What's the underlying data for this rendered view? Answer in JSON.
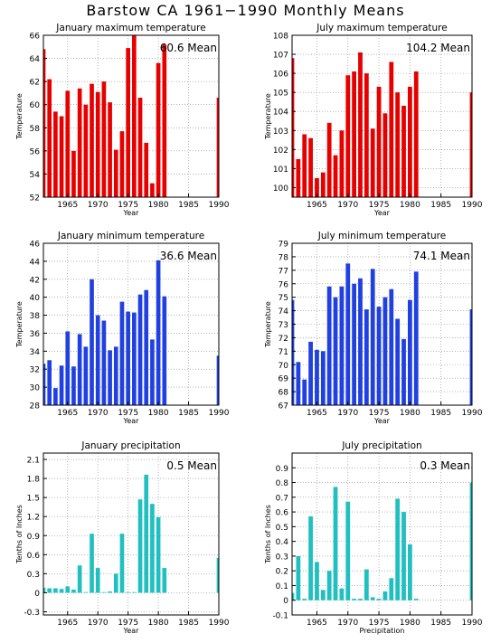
{
  "page": {
    "title": "Barstow CA  1961−1990 Monthly Means"
  },
  "chart_data": [
    {
      "type": "bar",
      "title": "January maximum temperature",
      "ylabel": "Temperature",
      "xlabel": "Year",
      "mean_label": "60.6 Mean",
      "color": "#e60000",
      "ylim": [
        52,
        66
      ],
      "yticks": [
        52,
        54,
        56,
        58,
        60,
        62,
        64,
        66
      ],
      "ytick_labels": [
        "52",
        "54",
        "56",
        "58",
        "60",
        "62",
        "64",
        "66"
      ],
      "xlim": [
        1961,
        1990
      ],
      "xticks": [
        1965,
        1970,
        1975,
        1980,
        1985,
        1990
      ],
      "xtick_labels": [
        "1965",
        "1970",
        "1975",
        "1980",
        "1985",
        "1990"
      ],
      "x": [
        1961,
        1962,
        1963,
        1964,
        1965,
        1966,
        1967,
        1968,
        1969,
        1970,
        1971,
        1972,
        1973,
        1974,
        1975,
        1976,
        1977,
        1978,
        1979,
        1980,
        1981,
        1990
      ],
      "values": [
        64.8,
        62.2,
        59.4,
        59.0,
        61.2,
        56.0,
        61.4,
        60.0,
        61.8,
        61.1,
        62.0,
        60.2,
        56.1,
        57.7,
        64.9,
        66.3,
        60.6,
        56.7,
        53.2,
        63.6,
        65.2,
        60.6
      ]
    },
    {
      "type": "bar",
      "title": "July maximum temperature",
      "ylabel": "Temperature",
      "xlabel": "Year",
      "mean_label": "104.2 Mean",
      "color": "#e60000",
      "ylim": [
        99.5,
        108
      ],
      "yticks": [
        100,
        101,
        102,
        103,
        104,
        105,
        106,
        107,
        108
      ],
      "ytick_labels": [
        "100",
        "101",
        "102",
        "103",
        "104",
        "105",
        "106",
        "107",
        "108"
      ],
      "xlim": [
        1961,
        1990
      ],
      "xticks": [
        1965,
        1970,
        1975,
        1980,
        1985,
        1990
      ],
      "xtick_labels": [
        "1965",
        "1970",
        "1975",
        "1980",
        "1985",
        "1990"
      ],
      "x": [
        1961,
        1962,
        1963,
        1964,
        1965,
        1966,
        1967,
        1968,
        1969,
        1970,
        1971,
        1972,
        1973,
        1974,
        1975,
        1976,
        1977,
        1978,
        1979,
        1980,
        1981,
        1990
      ],
      "values": [
        106.8,
        101.5,
        102.8,
        102.6,
        100.5,
        100.8,
        103.4,
        101.7,
        103.0,
        105.9,
        106.1,
        107.1,
        106.0,
        103.1,
        105.3,
        103.9,
        106.6,
        105.0,
        104.3,
        105.3,
        106.1,
        105.0
      ]
    },
    {
      "type": "bar",
      "title": "January minimum temperature",
      "ylabel": "Temperature",
      "xlabel": "Year",
      "mean_label": "36.6 Mean",
      "color": "#2040e0",
      "ylim": [
        28,
        46
      ],
      "yticks": [
        28,
        30,
        32,
        34,
        36,
        38,
        40,
        42,
        44,
        46
      ],
      "ytick_labels": [
        "28",
        "30",
        "32",
        "34",
        "36",
        "38",
        "40",
        "42",
        "44",
        "46"
      ],
      "xlim": [
        1961,
        1990
      ],
      "xticks": [
        1965,
        1970,
        1975,
        1980,
        1985,
        1990
      ],
      "xtick_labels": [
        "1965",
        "1970",
        "1975",
        "1980",
        "1985",
        "1990"
      ],
      "x": [
        1961,
        1962,
        1963,
        1964,
        1965,
        1966,
        1967,
        1968,
        1969,
        1970,
        1971,
        1972,
        1973,
        1974,
        1975,
        1976,
        1977,
        1978,
        1979,
        1980,
        1981,
        1990
      ],
      "values": [
        32.6,
        33.0,
        29.9,
        32.4,
        36.2,
        32.3,
        35.9,
        34.5,
        42.0,
        38.0,
        37.4,
        34.1,
        34.5,
        39.5,
        38.4,
        38.3,
        40.3,
        40.8,
        35.3,
        44.1,
        40.1,
        33.5
      ]
    },
    {
      "type": "bar",
      "title": "July minimum temperature",
      "ylabel": "Temperature",
      "xlabel": "Year",
      "mean_label": "74.1 Mean",
      "color": "#2040e0",
      "ylim": [
        67,
        79
      ],
      "yticks": [
        67,
        68,
        69,
        70,
        71,
        72,
        73,
        74,
        75,
        76,
        77,
        78,
        79
      ],
      "ytick_labels": [
        "67",
        "68",
        "69",
        "70",
        "71",
        "72",
        "73",
        "74",
        "75",
        "76",
        "77",
        "78",
        "79"
      ],
      "xlim": [
        1961,
        1990
      ],
      "xticks": [
        1965,
        1970,
        1975,
        1980,
        1985,
        1990
      ],
      "xtick_labels": [
        "1965",
        "1970",
        "1975",
        "1980",
        "1985",
        "1990"
      ],
      "x": [
        1961,
        1962,
        1963,
        1964,
        1965,
        1966,
        1967,
        1968,
        1969,
        1970,
        1971,
        1972,
        1973,
        1974,
        1975,
        1976,
        1977,
        1978,
        1979,
        1980,
        1981,
        1990
      ],
      "values": [
        74.8,
        70.2,
        68.9,
        71.7,
        71.1,
        71.0,
        75.8,
        75.0,
        75.8,
        77.5,
        76.0,
        76.4,
        74.1,
        77.1,
        74.3,
        75.0,
        75.6,
        73.4,
        71.9,
        74.8,
        76.9,
        74.1
      ]
    },
    {
      "type": "bar",
      "title": "January precipitation",
      "ylabel": "Tenths of Inches",
      "xlabel": "Year",
      "mean_label": "0.5 Mean",
      "color": "#20c0c0",
      "ylim": [
        -0.35,
        2.2
      ],
      "yticks": [
        -0.3,
        0,
        0.3,
        0.6,
        0.9,
        1.2,
        1.5,
        1.8,
        2.1
      ],
      "ytick_labels": [
        "-0.3",
        "0",
        "0.3",
        "0.6",
        "0.9",
        "1.2",
        "1.5",
        "1.8",
        "2.1"
      ],
      "xlim": [
        1961,
        1990
      ],
      "xticks": [
        1965,
        1970,
        1975,
        1980,
        1985,
        1990
      ],
      "xtick_labels": [
        "1965",
        "1970",
        "1975",
        "1980",
        "1985",
        "1990"
      ],
      "x": [
        1961,
        1962,
        1963,
        1964,
        1965,
        1966,
        1967,
        1968,
        1969,
        1970,
        1971,
        1972,
        1973,
        1974,
        1975,
        1976,
        1977,
        1978,
        1979,
        1980,
        1981,
        1990
      ],
      "values": [
        0.08,
        0.07,
        0.07,
        0.06,
        0.1,
        0.05,
        0.43,
        0.01,
        0.93,
        0.39,
        0.01,
        0.02,
        0.3,
        0.93,
        0.01,
        0.01,
        1.47,
        1.86,
        1.4,
        1.19,
        0.39,
        0.55
      ]
    },
    {
      "type": "bar",
      "title": "July precipitation",
      "ylabel": "Tenths of Inches",
      "xlabel": "Precipitation",
      "mean_label": "0.3 Mean",
      "color": "#20c0c0",
      "ylim": [
        -0.1,
        1.0
      ],
      "yticks": [
        -0.1,
        0,
        0.1,
        0.2,
        0.3,
        0.4,
        0.5,
        0.6,
        0.7,
        0.8,
        0.9
      ],
      "ytick_labels": [
        "-0.1",
        "0",
        "0.1",
        "0.2",
        "0.3",
        "0.4",
        "0.5",
        "0.6",
        "0.7",
        "0.8",
        "0.9"
      ],
      "xlim": [
        1961,
        1990
      ],
      "xticks": [
        1965,
        1970,
        1975,
        1980,
        1985,
        1990
      ],
      "xtick_labels": [
        "1965",
        "1970",
        "1975",
        "1980",
        "1985",
        "1990"
      ],
      "x": [
        1961,
        1962,
        1963,
        1964,
        1965,
        1966,
        1967,
        1968,
        1969,
        1970,
        1971,
        1972,
        1973,
        1974,
        1975,
        1976,
        1977,
        1978,
        1979,
        1980,
        1981,
        1990
      ],
      "values": [
        0.05,
        0.3,
        0.01,
        0.57,
        0.26,
        0.07,
        0.2,
        0.77,
        0.08,
        0.67,
        0.01,
        0.01,
        0.21,
        0.02,
        0.01,
        0.06,
        0.15,
        0.69,
        0.6,
        0.38,
        0.01,
        0.8
      ]
    }
  ]
}
